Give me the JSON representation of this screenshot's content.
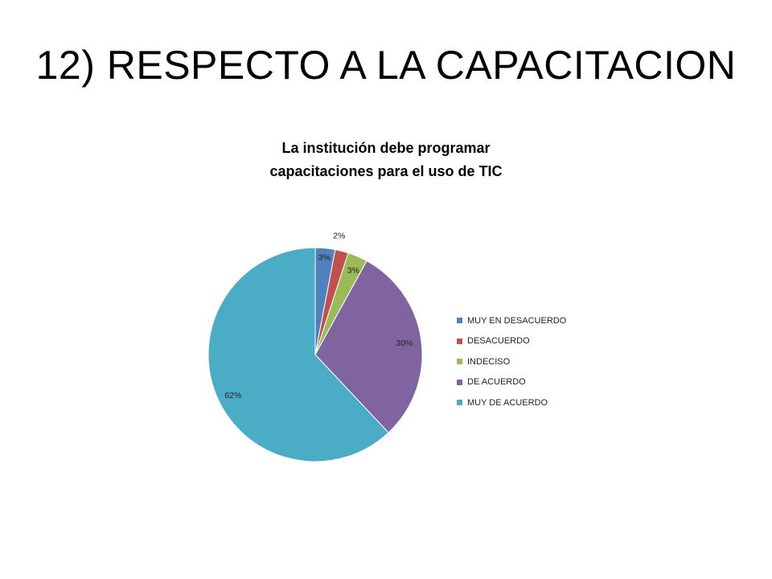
{
  "slide": {
    "title": "12) RESPECTO A LA CAPACITACION"
  },
  "chart_data": {
    "type": "pie",
    "title_lines": [
      "La institución debe programar",
      "capacitaciones para el uso de  TIC"
    ],
    "legend_position": "right",
    "categories": [
      "MUY EN DESACUERDO",
      "DESACUERDO",
      "INDECISO",
      "DE ACUERDO",
      "MUY DE ACUERDO"
    ],
    "values": [
      3,
      2,
      3,
      30,
      62
    ],
    "labels": [
      "3%",
      "2%",
      "3%",
      "30%",
      "62%"
    ],
    "colors": [
      "#4f81bd",
      "#c0504d",
      "#9bbb59",
      "#8064a2",
      "#4bacc6"
    ]
  }
}
